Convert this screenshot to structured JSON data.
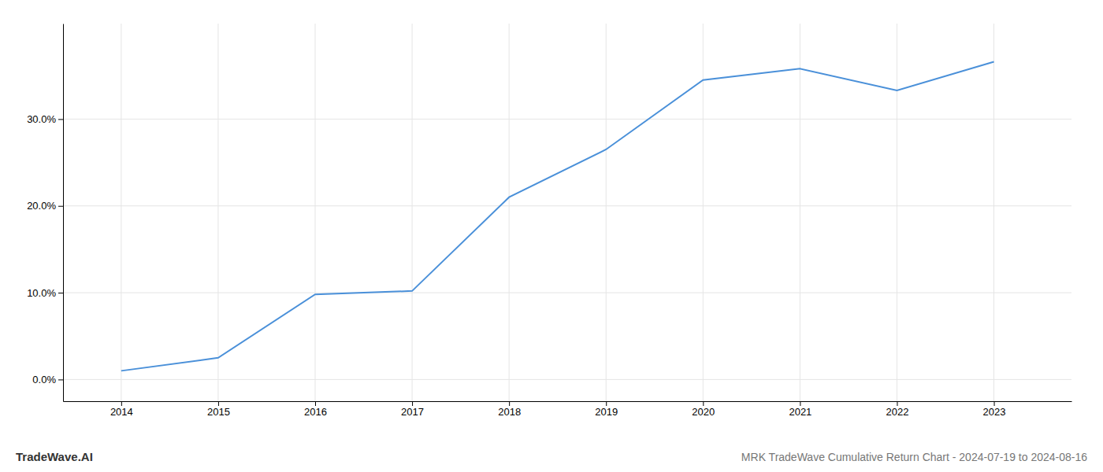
{
  "chart_data": {
    "type": "line",
    "title": "MRK TradeWave Cumulative Return Chart - 2024-07-19 to 2024-08-16",
    "annotations": [
      "TradeWave.AI"
    ],
    "x": [
      2014,
      2015,
      2016,
      2017,
      2018,
      2019,
      2020,
      2021,
      2022,
      2023
    ],
    "values": [
      0.01,
      0.025,
      0.098,
      0.102,
      0.21,
      0.265,
      0.345,
      0.358,
      0.333,
      0.366
    ],
    "color": "#4a90d9",
    "xlim": [
      2013.4,
      2023.8
    ],
    "xticks": [
      2014,
      2015,
      2016,
      2017,
      2018,
      2019,
      2020,
      2021,
      2022,
      2023
    ],
    "ylim": [
      -0.025,
      0.41
    ],
    "yticks": [
      {
        "value": 0.0,
        "label": "0.0%"
      },
      {
        "value": 0.1,
        "label": "10.0%"
      },
      {
        "value": 0.2,
        "label": "20.0%"
      },
      {
        "value": 0.3,
        "label": "30.0%"
      }
    ],
    "grid": true
  }
}
